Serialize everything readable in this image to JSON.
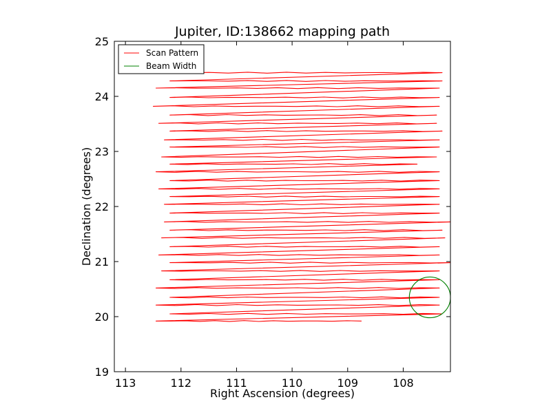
{
  "chart_data": {
    "type": "line",
    "title": "Jupiter, ID:138662 mapping path",
    "xlabel": "Right Ascension (degrees)",
    "ylabel": "Declination (degrees)",
    "xlim": [
      113.2,
      107.15
    ],
    "ylim": [
      19,
      25
    ],
    "x_inverted": true,
    "xticks": [
      "113",
      "112",
      "111",
      "110",
      "109",
      "108"
    ],
    "xtick_values": [
      113,
      112,
      111,
      110,
      109,
      108
    ],
    "yticks": [
      "19",
      "20",
      "21",
      "22",
      "23",
      "24",
      "25"
    ],
    "ytick_values": [
      19,
      20,
      21,
      22,
      23,
      24,
      25
    ],
    "grid": false,
    "legend": {
      "placement": "upper-left",
      "entries": [
        {
          "label": "Scan Pattern",
          "color": "#ff0000"
        },
        {
          "label": "Beam Width",
          "color": "#008000"
        }
      ]
    },
    "series": [
      {
        "name": "Scan Pattern",
        "color": "#ff0000",
        "passes": [
          {
            "dec": 24.43,
            "ra_start": 112.2,
            "ra_end": 107.3
          },
          {
            "dec": 24.28,
            "ra_start": 112.2,
            "ra_end": 107.3
          },
          {
            "dec": 24.15,
            "ra_start": 112.45,
            "ra_end": 107.35
          },
          {
            "dec": 23.98,
            "ra_start": 112.2,
            "ra_end": 107.35
          },
          {
            "dec": 23.82,
            "ra_start": 112.5,
            "ra_end": 107.35
          },
          {
            "dec": 23.66,
            "ra_start": 112.2,
            "ra_end": 107.4
          },
          {
            "dec": 23.51,
            "ra_start": 112.4,
            "ra_end": 107.4
          },
          {
            "dec": 23.37,
            "ra_start": 112.2,
            "ra_end": 107.3
          },
          {
            "dec": 23.21,
            "ra_start": 112.3,
            "ra_end": 107.35
          },
          {
            "dec": 23.08,
            "ra_start": 112.2,
            "ra_end": 107.35
          },
          {
            "dec": 22.9,
            "ra_start": 112.35,
            "ra_end": 107.4
          },
          {
            "dec": 22.77,
            "ra_start": 112.2,
            "ra_end": 107.75
          },
          {
            "dec": 22.63,
            "ra_start": 112.45,
            "ra_end": 107.35
          },
          {
            "dec": 22.47,
            "ra_start": 112.2,
            "ra_end": 107.35
          },
          {
            "dec": 22.32,
            "ra_start": 112.4,
            "ra_end": 107.35
          },
          {
            "dec": 22.18,
            "ra_start": 112.2,
            "ra_end": 107.35
          },
          {
            "dec": 22.04,
            "ra_start": 112.3,
            "ra_end": 107.35
          },
          {
            "dec": 21.88,
            "ra_start": 112.2,
            "ra_end": 107.35
          },
          {
            "dec": 21.72,
            "ra_start": 112.3,
            "ra_end": 107.15
          },
          {
            "dec": 21.57,
            "ra_start": 112.2,
            "ra_end": 107.3
          },
          {
            "dec": 21.43,
            "ra_start": 112.35,
            "ra_end": 107.25
          },
          {
            "dec": 21.27,
            "ra_start": 112.2,
            "ra_end": 107.35
          },
          {
            "dec": 21.12,
            "ra_start": 112.4,
            "ra_end": 107.35
          },
          {
            "dec": 20.98,
            "ra_start": 112.2,
            "ra_end": 107.15
          },
          {
            "dec": 20.83,
            "ra_start": 112.35,
            "ra_end": 107.35
          },
          {
            "dec": 20.67,
            "ra_start": 112.2,
            "ra_end": 107.35
          },
          {
            "dec": 20.52,
            "ra_start": 112.45,
            "ra_end": 107.35
          },
          {
            "dec": 20.35,
            "ra_start": 112.2,
            "ra_end": 107.35
          },
          {
            "dec": 20.21,
            "ra_start": 112.45,
            "ra_end": 107.35
          },
          {
            "dec": 20.05,
            "ra_start": 112.2,
            "ra_end": 107.3
          },
          {
            "dec": 19.92,
            "ra_start": 112.45,
            "ra_end": 108.75
          }
        ]
      },
      {
        "name": "Beam Width",
        "color": "#008000",
        "circle": {
          "center_ra": 107.52,
          "center_dec": 20.35,
          "radius_deg": 0.37
        }
      }
    ]
  }
}
